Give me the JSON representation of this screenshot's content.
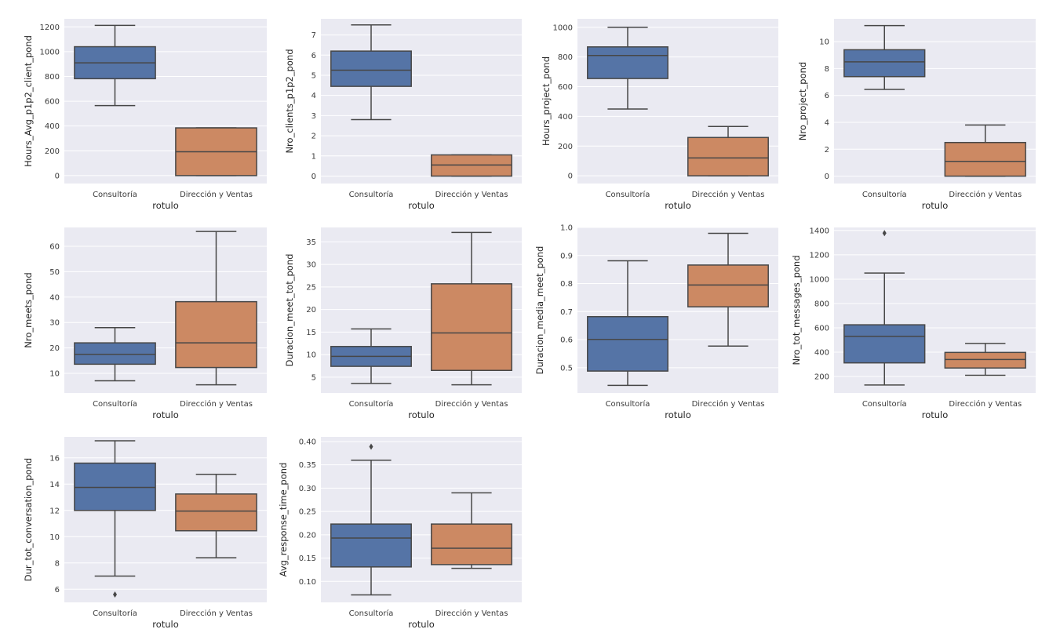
{
  "chart_data": [
    {
      "type": "box",
      "title": "",
      "xlabel": "rotulo",
      "ylabel": "Hours_Avg_p1p2_client_pond",
      "categories": [
        "Consultoría",
        "Dirección y Ventas"
      ],
      "yticks": [
        0,
        200,
        400,
        600,
        800,
        1000,
        1200
      ],
      "ylim": [
        -64,
        1265
      ],
      "grid": true,
      "series": [
        {
          "name": "Consultoría",
          "whisker_low": 565,
          "q1": 782,
          "median": 910,
          "q3": 1040,
          "whisker_high": 1212,
          "outliers": []
        },
        {
          "name": "Dirección y Ventas",
          "whisker_low": 0,
          "q1": 0,
          "median": 192,
          "q3": 385,
          "whisker_high": 385,
          "outliers": []
        }
      ]
    },
    {
      "type": "box",
      "title": "",
      "xlabel": "rotulo",
      "ylabel": "Nro_clients_p1p2_pond",
      "categories": [
        "Consultoría",
        "Dirección y Ventas"
      ],
      "yticks": [
        0,
        1,
        2,
        3,
        4,
        5,
        6,
        7
      ],
      "ylim": [
        -0.37,
        7.8
      ],
      "grid": true,
      "series": [
        {
          "name": "Consultoría",
          "whisker_low": 2.8,
          "q1": 4.45,
          "median": 5.25,
          "q3": 6.2,
          "whisker_high": 7.5,
          "outliers": []
        },
        {
          "name": "Dirección y Ventas",
          "whisker_low": 0,
          "q1": 0,
          "median": 0.55,
          "q3": 1.05,
          "whisker_high": 1.05,
          "outliers": []
        }
      ]
    },
    {
      "type": "box",
      "title": "",
      "xlabel": "rotulo",
      "ylabel": "Hours_project_pond",
      "categories": [
        "Consultoría",
        "Dirección y Ventas"
      ],
      "yticks": [
        0,
        200,
        400,
        600,
        800,
        1000
      ],
      "ylim": [
        -52,
        1057
      ],
      "grid": true,
      "series": [
        {
          "name": "Consultoría",
          "whisker_low": 450,
          "q1": 655,
          "median": 810,
          "q3": 868,
          "whisker_high": 1000,
          "outliers": []
        },
        {
          "name": "Dirección y Ventas",
          "whisker_low": 0,
          "q1": 0,
          "median": 120,
          "q3": 258,
          "whisker_high": 332,
          "outliers": []
        }
      ]
    },
    {
      "type": "box",
      "title": "",
      "xlabel": "rotulo",
      "ylabel": "Nro_project_pond",
      "categories": [
        "Consultoría",
        "Dirección y Ventas"
      ],
      "yticks": [
        0,
        2,
        4,
        6,
        8,
        10
      ],
      "ylim": [
        -0.55,
        11.7
      ],
      "grid": true,
      "series": [
        {
          "name": "Consultoría",
          "whisker_low": 6.45,
          "q1": 7.4,
          "median": 8.5,
          "q3": 9.4,
          "whisker_high": 11.2,
          "outliers": []
        },
        {
          "name": "Dirección y Ventas",
          "whisker_low": 0,
          "q1": 0,
          "median": 1.1,
          "q3": 2.5,
          "whisker_high": 3.8,
          "outliers": []
        }
      ]
    },
    {
      "type": "box",
      "title": "",
      "xlabel": "rotulo",
      "ylabel": "Nro_meets_pond",
      "categories": [
        "Consultoría",
        "Dirección y Ventas"
      ],
      "yticks": [
        10,
        20,
        30,
        40,
        50,
        60
      ],
      "ylim": [
        2.3,
        67.4
      ],
      "grid": true,
      "series": [
        {
          "name": "Consultoría",
          "whisker_low": 7.1,
          "q1": 13.6,
          "median": 17.5,
          "q3": 22.0,
          "whisker_high": 28.0,
          "outliers": []
        },
        {
          "name": "Dirección y Ventas",
          "whisker_low": 5.5,
          "q1": 12.3,
          "median": 22.0,
          "q3": 38.2,
          "whisker_high": 65.8,
          "outliers": []
        }
      ]
    },
    {
      "type": "box",
      "title": "",
      "xlabel": "rotulo",
      "ylabel": "Duracion_meet_tot_pond",
      "categories": [
        "Consultoría",
        "Dirección y Ventas"
      ],
      "yticks": [
        5,
        10,
        15,
        20,
        25,
        30,
        35
      ],
      "ylim": [
        1.5,
        38.2
      ],
      "grid": true,
      "series": [
        {
          "name": "Consultoría",
          "whisker_low": 3.6,
          "q1": 7.4,
          "median": 9.6,
          "q3": 11.8,
          "whisker_high": 15.7,
          "outliers": []
        },
        {
          "name": "Dirección y Ventas",
          "whisker_low": 3.3,
          "q1": 6.5,
          "median": 14.8,
          "q3": 25.7,
          "whisker_high": 37.1,
          "outliers": []
        }
      ]
    },
    {
      "type": "box",
      "title": "",
      "xlabel": "rotulo",
      "ylabel": "Duracion_media_meet_pond",
      "categories": [
        "Consultoría",
        "Dirección y Ventas"
      ],
      "yticks": [
        0.5,
        0.6,
        0.7,
        0.8,
        0.9,
        1.0
      ],
      "ytick_labels": [
        "0.5",
        "0.6",
        "0.7",
        "0.8",
        "0.9",
        "1.0"
      ],
      "ylim": [
        0.41,
        1.0
      ],
      "grid": true,
      "series": [
        {
          "name": "Consultoría",
          "whisker_low": 0.437,
          "q1": 0.488,
          "median": 0.601,
          "q3": 0.682,
          "whisker_high": 0.881,
          "outliers": []
        },
        {
          "name": "Dirección y Ventas",
          "whisker_low": 0.577,
          "q1": 0.717,
          "median": 0.795,
          "q3": 0.866,
          "whisker_high": 0.979,
          "outliers": []
        }
      ]
    },
    {
      "type": "box",
      "title": "",
      "xlabel": "rotulo",
      "ylabel": "Nro_tot_messages_pond",
      "categories": [
        "Consultoría",
        "Dirección y Ventas"
      ],
      "yticks": [
        200,
        400,
        600,
        800,
        1000,
        1200,
        1400
      ],
      "ylim": [
        65,
        1425
      ],
      "grid": true,
      "series": [
        {
          "name": "Consultoría",
          "whisker_low": 130,
          "q1": 312,
          "median": 530,
          "q3": 625,
          "whisker_high": 1050,
          "outliers": [
            1378
          ]
        },
        {
          "name": "Dirección y Ventas",
          "whisker_low": 210,
          "q1": 270,
          "median": 340,
          "q3": 398,
          "whisker_high": 472,
          "outliers": []
        }
      ]
    },
    {
      "type": "box",
      "title": "",
      "xlabel": "rotulo",
      "ylabel": "Dur_tot_conversation_pond",
      "categories": [
        "Consultoría",
        "Dirección y Ventas"
      ],
      "yticks": [
        6,
        8,
        10,
        12,
        14,
        16
      ],
      "ylim": [
        5.0,
        17.6
      ],
      "grid": true,
      "series": [
        {
          "name": "Consultoría",
          "whisker_low": 7.0,
          "q1": 12.0,
          "median": 13.75,
          "q3": 15.6,
          "whisker_high": 17.3,
          "outliers": [
            5.6
          ]
        },
        {
          "name": "Dirección y Ventas",
          "whisker_low": 8.4,
          "q1": 10.45,
          "median": 11.95,
          "q3": 13.25,
          "whisker_high": 14.75,
          "outliers": []
        }
      ]
    },
    {
      "type": "box",
      "title": "",
      "xlabel": "rotulo",
      "ylabel": "Avg_response_time_pond",
      "categories": [
        "Consultoría",
        "Dirección y Ventas"
      ],
      "yticks": [
        0.1,
        0.15,
        0.2,
        0.25,
        0.3,
        0.35,
        0.4
      ],
      "ytick_labels": [
        "0.10",
        "0.15",
        "0.20",
        "0.25",
        "0.30",
        "0.35",
        "0.40"
      ],
      "ylim": [
        0.055,
        0.41
      ],
      "grid": true,
      "series": [
        {
          "name": "Consultoría",
          "whisker_low": 0.071,
          "q1": 0.131,
          "median": 0.193,
          "q3": 0.223,
          "whisker_high": 0.36,
          "outliers": [
            0.389
          ]
        },
        {
          "name": "Dirección y Ventas",
          "whisker_low": 0.128,
          "q1": 0.136,
          "median": 0.171,
          "q3": 0.223,
          "whisker_high": 0.29,
          "outliers": []
        }
      ]
    }
  ],
  "colors": {
    "axes_background": "#eaeaf2",
    "grid": "#ffffff",
    "box_edge": "#474747",
    "series": [
      "#5574a6",
      "#cc8963"
    ]
  }
}
